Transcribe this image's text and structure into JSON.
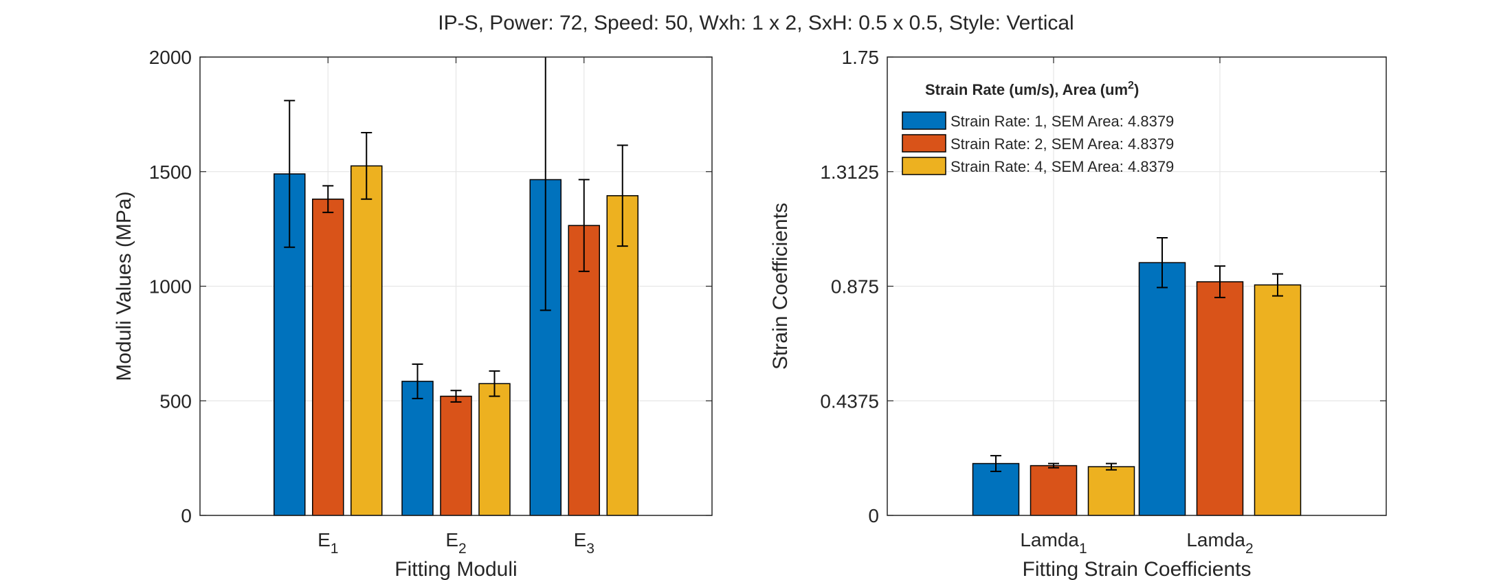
{
  "figure_title": "IP-S, Power: 72, Speed: 50, Wxh: 1 x 2, SxH: 0.5 x 0.5, Style: Vertical",
  "colors": {
    "s1": "#0072BD",
    "s2": "#D95319",
    "s3": "#EDB120",
    "grid": "#e6e6e6",
    "axis": "#262626"
  },
  "chart_data": [
    {
      "type": "bar",
      "title": "",
      "xlabel": "Fitting Moduli",
      "ylabel": "Moduli Values (MPa)",
      "ylim": [
        0,
        2000
      ],
      "yticks": [
        0,
        500,
        1000,
        1500,
        2000
      ],
      "ytick_labels": [
        "0",
        "500",
        "1000",
        "1500",
        "2000"
      ],
      "grid": true,
      "categories": [
        {
          "base": "E",
          "sub": "1"
        },
        {
          "base": "E",
          "sub": "2"
        },
        {
          "base": "E",
          "sub": "3"
        }
      ],
      "series": [
        {
          "values": [
            1490,
            585,
            1465
          ],
          "errors": [
            320,
            75,
            570
          ]
        },
        {
          "values": [
            1380,
            520,
            1265
          ],
          "errors": [
            58,
            25,
            200
          ]
        },
        {
          "values": [
            1525,
            575,
            1395
          ],
          "errors": [
            145,
            55,
            220
          ]
        }
      ]
    },
    {
      "type": "bar",
      "title": "",
      "xlabel": "Fitting Strain Coefficients",
      "ylabel": "Strain Coefficients",
      "ylim": [
        0,
        1.75
      ],
      "yticks": [
        0,
        0.4375,
        0.875,
        1.3125,
        1.75
      ],
      "ytick_labels": [
        "0",
        "0.4375",
        "0.875",
        "1.3125",
        "1.75"
      ],
      "grid": true,
      "categories": [
        {
          "base": "Lamda",
          "sub": "1"
        },
        {
          "base": "Lamda",
          "sub": "2"
        }
      ],
      "series": [
        {
          "name": "Strain Rate: 1, SEM Area: 4.8379",
          "values": [
            0.198,
            0.965
          ],
          "errors": [
            0.03,
            0.095
          ]
        },
        {
          "name": "Strain Rate: 2, SEM Area: 4.8379",
          "values": [
            0.19,
            0.892
          ],
          "errors": [
            0.008,
            0.06
          ]
        },
        {
          "name": "Strain Rate: 4, SEM Area: 4.8379",
          "values": [
            0.186,
            0.88
          ],
          "errors": [
            0.012,
            0.042
          ]
        }
      ],
      "legend": {
        "title": "Strain Rate (um/s), Area (um",
        "title_sup": "2",
        "title_end": ")",
        "placement": "top-left"
      }
    }
  ]
}
